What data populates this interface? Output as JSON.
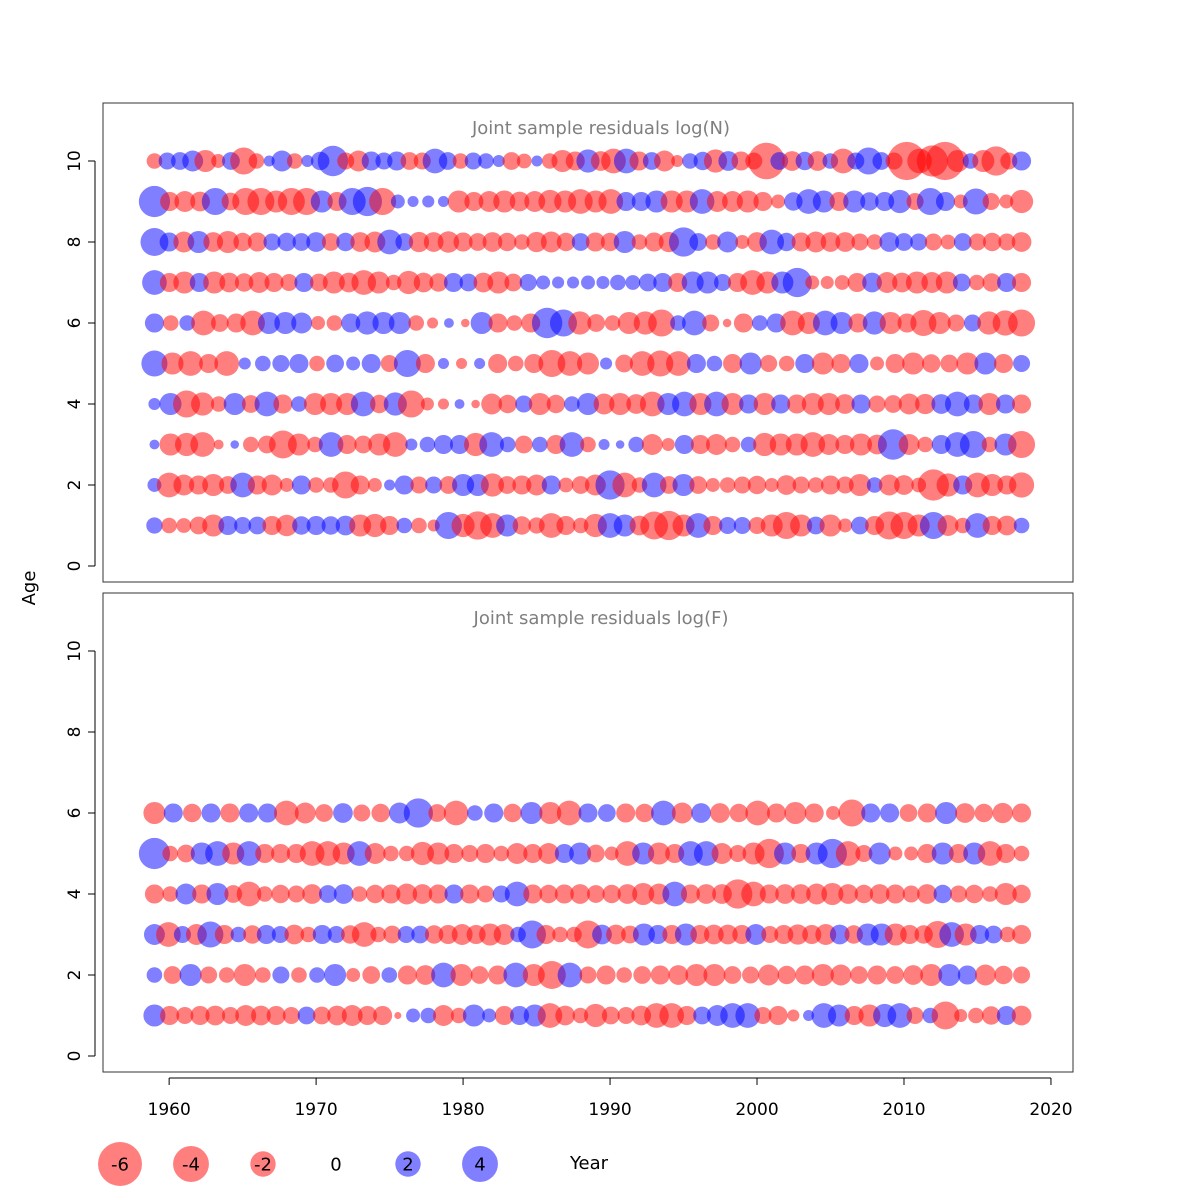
{
  "chart_data": {
    "type": "bubble",
    "xlabel": "Year",
    "ylabel": "Age",
    "xlim": [
      1955.5,
      2021.5
    ],
    "x_ticks": [
      1960,
      1970,
      1980,
      1990,
      2000,
      2010,
      2020
    ],
    "y_ticks": [
      0,
      2,
      4,
      6,
      8,
      10
    ],
    "ylim": [
      -0.3,
      11.5
    ],
    "colors": {
      "negative": "#ff0000",
      "positive": "#0000ff",
      "opacity": 0.5,
      "title": "#7f7f7f"
    },
    "legend": {
      "position": "bottom",
      "items": [
        {
          "label": "-6",
          "value": -6
        },
        {
          "label": "-4",
          "value": -4
        },
        {
          "label": "-2",
          "value": -2
        },
        {
          "label": "0",
          "value": 0
        },
        {
          "label": "2",
          "value": 2
        },
        {
          "label": "4",
          "value": 4
        }
      ]
    },
    "panels": [
      {
        "title": "Joint sample residuals log(N)",
        "years": [
          1959,
          2018
        ],
        "ages": [
          1,
          2,
          3,
          4,
          5,
          6,
          7,
          8,
          9,
          10
        ],
        "residuals": {
          "1": [
            1.1,
            -1.0,
            -0.9,
            -1.3,
            -2.0,
            1.5,
            1.2,
            1.3,
            -1.5,
            -1.9,
            1.4,
            1.5,
            1.4,
            1.6,
            -2.0,
            -2.2,
            -1.5,
            1.0,
            -1.0,
            -0.6,
            3.0,
            -2.2,
            -3.3,
            -2.5,
            2.0,
            -1.4,
            -1.1,
            -2.5,
            -1.5,
            -1.0,
            -2.2,
            2.5,
            2.0,
            -1.6,
            -3.2,
            -3.5,
            -2.0,
            2.5,
            -1.5,
            1.2,
            1.2,
            -1.2,
            -2.0,
            -3.0,
            -2.0,
            1.3,
            -2.0,
            -0.8,
            1.3,
            -1.5,
            -3.2,
            -3.0,
            -2.0,
            3.0,
            -1.8,
            -1.0,
            2.5,
            -1.5,
            -1.6,
            1.0
          ],
          "2": [
            0.8,
            -2.5,
            -1.8,
            -1.5,
            -2.0,
            -1.3,
            2.5,
            -1.5,
            -1.8,
            -0.8,
            1.5,
            -1.0,
            -1.0,
            -3.0,
            -1.5,
            -0.8,
            0.5,
            1.5,
            -1.2,
            1.2,
            -1.3,
            2.0,
            2.0,
            -2.2,
            -1.3,
            -1.5,
            -1.8,
            1.5,
            -0.9,
            -1.3,
            -1.8,
            3.5,
            -2.5,
            -1.0,
            2.5,
            -1.3,
            2.0,
            -1.3,
            -0.8,
            -1.0,
            -1.2,
            -1.4,
            -0.8,
            -1.6,
            -1.2,
            -1.0,
            -1.5,
            -1.2,
            -2.0,
            1.0,
            -1.8,
            -1.6,
            -0.9,
            -4.0,
            -2.2,
            1.5,
            -2.5,
            -2.0,
            -1.5,
            -2.6
          ],
          "3": [
            0.4,
            -2.0,
            -2.2,
            -2.5,
            -0.4,
            0.3,
            -1.0,
            -1.3,
            -3.2,
            -2.0,
            -1.0,
            2.5,
            -1.5,
            -1.3,
            -2.0,
            -2.5,
            0.6,
            1.0,
            1.5,
            1.5,
            -2.2,
            2.5,
            1.0,
            -1.3,
            1.0,
            -1.5,
            2.5,
            -1.0,
            0.5,
            0.3,
            1.0,
            -1.8,
            -0.7,
            1.5,
            -1.5,
            -1.8,
            -1.0,
            1.0,
            -2.2,
            -2.0,
            -2.0,
            -2.5,
            -1.8,
            -1.5,
            -2.0,
            -1.6,
            3.8,
            -1.8,
            -1.0,
            1.5,
            2.5,
            3.0,
            -1.0,
            2.0,
            -3.0
          ],
          "4": [
            0.6,
            2.0,
            -3.0,
            -2.2,
            -1.0,
            2.0,
            -1.3,
            2.5,
            -1.5,
            1.0,
            -2.0,
            -2.0,
            -2.0,
            2.5,
            -1.4,
            2.2,
            -3.0,
            -0.7,
            -0.5,
            0.4,
            -0.3,
            -1.8,
            -1.4,
            1.2,
            -2.0,
            -1.4,
            1.0,
            2.0,
            -1.8,
            -2.0,
            -1.6,
            -2.5,
            2.0,
            2.5,
            -2.0,
            2.5,
            -2.0,
            1.5,
            -2.0,
            1.5,
            -1.5,
            -2.0,
            -2.0,
            -1.6,
            1.5,
            -1.2,
            -1.3,
            -1.8,
            -1.7,
            1.6,
            2.5,
            1.5,
            -2.0,
            1.5,
            -1.5
          ],
          "5": [
            2.8,
            -2.0,
            -2.5,
            -1.5,
            -2.5,
            0.6,
            1.0,
            1.2,
            1.5,
            -1.0,
            1.3,
            0.8,
            1.5,
            -1.2,
            3.0,
            -1.5,
            0.5,
            -0.5,
            0.5,
            -1.5,
            -1.0,
            -1.5,
            -3.0,
            -2.5,
            -2.0,
            0.6,
            -1.3,
            -2.5,
            -2.8,
            -2.5,
            1.5,
            1.0,
            -1.5,
            2.0,
            -1.2,
            -1.0,
            1.5,
            -2.0,
            -1.5,
            1.5,
            -0.8,
            -1.5,
            -2.0,
            -1.4,
            -1.3,
            -2.0,
            2.0,
            -1.5,
            1.2
          ],
          "6": [
            1.5,
            -1.0,
            1.0,
            -2.5,
            -1.3,
            -1.5,
            -2.5,
            2.0,
            2.0,
            1.8,
            -0.8,
            -1.0,
            1.5,
            2.2,
            2.0,
            2.0,
            -1.0,
            -0.5,
            0.4,
            -0.3,
            2.0,
            -1.5,
            -1.0,
            -1.5,
            3.8,
            3.0,
            -2.2,
            -1.3,
            -1.0,
            -2.0,
            -2.2,
            -3.0,
            1.0,
            2.5,
            -1.2,
            -0.3,
            -1.5,
            1.0,
            1.5,
            -2.5,
            -2.0,
            2.5,
            2.0,
            -1.5,
            2.2,
            -2.0,
            -1.5,
            -2.8,
            -2.0,
            -1.2,
            1.2,
            -2.2,
            -2.6,
            -3.0
          ],
          "7": [
            2.5,
            -1.5,
            -2.0,
            1.5,
            -2.0,
            -1.6,
            -1.4,
            -1.8,
            -1.5,
            -1.2,
            1.5,
            -1.3,
            -2.0,
            -1.6,
            -2.5,
            -2.0,
            -1.0,
            -2.2,
            -1.6,
            -1.4,
            1.5,
            1.3,
            -1.6,
            -2.0,
            -1.3,
            1.2,
            0.8,
            0.6,
            0.6,
            0.8,
            0.7,
            1.0,
            0.9,
            1.3,
            1.5,
            -1.5,
            2.0,
            2.0,
            1.2,
            -1.5,
            -2.5,
            -2.0,
            2.0,
            3.5,
            -0.8,
            -0.7,
            -0.9,
            -1.5,
            1.6,
            -1.8,
            -1.6,
            -2.0,
            -1.8,
            -2.0,
            1.3,
            -1.0,
            -1.4,
            1.5,
            -1.5
          ],
          "8": [
            3.2,
            1.5,
            -1.8,
            2.0,
            -1.6,
            -2.0,
            -1.4,
            -1.5,
            1.2,
            1.4,
            1.3,
            1.6,
            -1.3,
            1.4,
            -1.6,
            -1.8,
            2.5,
            1.3,
            -1.7,
            -1.6,
            -1.9,
            -1.5,
            -1.3,
            -1.6,
            -1.4,
            -1.0,
            -1.7,
            -1.8,
            -1.4,
            1.3,
            -1.5,
            -1.4,
            2.0,
            -1.0,
            -1.5,
            -1.7,
            3.5,
            1.3,
            -1.0,
            1.8,
            -0.8,
            -1.6,
            2.5,
            1.4,
            -1.5,
            -1.8,
            -1.6,
            -1.6,
            -1.2,
            -1.0,
            1.6,
            1.3,
            1.2,
            -1.2,
            -0.9,
            1.3,
            -1.2,
            -1.4,
            -1.2,
            -1.6
          ],
          "9": [
            4.0,
            -1.5,
            -1.8,
            -1.6,
            3.0,
            -1.3,
            -3.0,
            -3.0,
            -2.0,
            -3.0,
            -3.0,
            2.0,
            -1.5,
            3.0,
            3.5,
            -3.0,
            0.8,
            0.5,
            0.6,
            0.5,
            -2.0,
            -1.5,
            -1.8,
            -2.0,
            -1.6,
            -1.8,
            -2.2,
            -2.0,
            -2.5,
            -2.0,
            -2.5,
            1.5,
            1.5,
            2.0,
            -2.0,
            -2.0,
            2.5,
            -1.8,
            -1.8,
            -2.0,
            -1.5,
            -0.8,
            1.4,
            2.5,
            2.0,
            -1.5,
            2.0,
            1.4,
            1.5,
            2.2,
            -1.2,
            3.0,
            1.5,
            -0.8,
            2.8,
            -1.2,
            -0.8,
            -2.2
          ],
          "10": [
            -1.0,
            1.2,
            1.3,
            1.8,
            -2.0,
            -0.8,
            1.3,
            -3.0,
            -1.0,
            0.5,
            1.8,
            -1.0,
            0.6,
            1.4,
            3.8,
            -1.2,
            -1.8,
            1.5,
            1.2,
            1.5,
            -1.3,
            -1.2,
            2.5,
            1.3,
            -1.0,
            1.2,
            1.0,
            0.6,
            -1.3,
            -0.9,
            0.5,
            -1.0,
            -2.0,
            -1.5,
            2.2,
            -1.6,
            -2.5,
            2.5,
            -1.5,
            1.3,
            -1.8,
            -0.6,
            1.0,
            1.4,
            -2.2,
            1.6,
            -1.5,
            -1.2,
            -5.5,
            1.3,
            -1.6,
            1.4,
            -1.6,
            1.0,
            -2.5,
            1.2,
            3.0,
            1.3,
            -1.2,
            -6.0,
            -2.5,
            -4.0,
            -6.0,
            -2.0,
            1.0,
            -2.0,
            -3.5,
            -1.2,
            1.5
          ]
        }
      },
      {
        "title": "Joint sample residuals log(F)",
        "years": [
          1959,
          2018
        ],
        "ages": [
          1,
          2,
          3,
          4,
          5,
          6
        ],
        "residuals": {
          "1": [
            2.0,
            -1.5,
            -1.2,
            -1.5,
            -1.6,
            -1.2,
            -1.8,
            -1.6,
            -1.5,
            -1.2,
            1.3,
            -1.3,
            -1.6,
            -1.8,
            -1.5,
            -1.5,
            -0.2,
            0.8,
            1.0,
            -1.8,
            -1.0,
            2.0,
            0.8,
            -1.5,
            1.5,
            2.0,
            -2.5,
            -1.6,
            -1.0,
            -2.2,
            -1.3,
            -1.2,
            -1.6,
            -2.5,
            -2.5,
            -1.5,
            1.3,
            1.8,
            2.5,
            2.5,
            -1.2,
            -1.5,
            -0.6,
            0.5,
            2.5,
            2.0,
            -1.5,
            -2.0,
            2.2,
            2.5,
            -1.2,
            1.0,
            -3.2,
            -0.7,
            -1.0,
            -1.4,
            1.5,
            -1.6
          ],
          "2": [
            1.0,
            -1.3,
            2.0,
            -1.2,
            -1.0,
            -2.0,
            -1.0,
            1.2,
            -1.0,
            1.0,
            2.0,
            -0.8,
            -1.3,
            1.0,
            -1.5,
            -1.6,
            2.5,
            -2.0,
            -1.3,
            -1.5,
            2.5,
            -2.0,
            -3.2,
            2.5,
            -1.2,
            -1.5,
            -1.0,
            -1.3,
            -1.5,
            -1.6,
            -2.0,
            -2.0,
            -1.3,
            -1.2,
            -1.8,
            -1.4,
            -1.5,
            -2.0,
            -1.8,
            -1.3,
            -1.5,
            -1.3,
            -1.6,
            -2.0,
            2.0,
            1.5,
            -1.8,
            -1.4,
            -1.2
          ],
          "3": [
            1.8,
            -2.5,
            1.2,
            -1.8,
            2.8,
            -1.5,
            1.0,
            -1.4,
            1.5,
            1.2,
            -1.6,
            -1.0,
            1.5,
            1.2,
            -1.4,
            -2.5,
            -1.0,
            -1.3,
            1.2,
            1.3,
            -1.4,
            -1.5,
            -1.8,
            -1.5,
            -2.0,
            -1.8,
            1.0,
            3.2,
            -1.5,
            -1.0,
            -1.0,
            -3.2,
            1.6,
            -1.6,
            -1.3,
            2.0,
            1.5,
            -1.5,
            2.0,
            -1.5,
            -1.6,
            -1.6,
            -1.5,
            1.8,
            -1.2,
            -1.5,
            -1.7,
            -1.5,
            -1.8,
            1.6,
            -1.4,
            2.0,
            2.0,
            -2.0,
            -1.5,
            -1.4,
            -3.0,
            2.5,
            -2.0,
            1.5,
            1.3,
            -1.0,
            -1.5
          ],
          "4": [
            -1.5,
            -1.0,
            1.8,
            -1.5,
            2.0,
            -1.3,
            -2.5,
            -1.0,
            -1.4,
            -1.2,
            -1.6,
            1.3,
            1.6,
            -1.0,
            -1.4,
            -1.5,
            -1.8,
            -1.6,
            -1.5,
            1.5,
            -1.5,
            -1.2,
            1.2,
            2.5,
            -1.5,
            -1.4,
            -1.5,
            -1.6,
            -1.3,
            -1.4,
            -1.6,
            -2.0,
            -1.8,
            2.5,
            -1.5,
            -1.6,
            -1.6,
            -3.5,
            -2.5,
            -1.5,
            -1.6,
            -1.6,
            -1.8,
            -2.0,
            -1.6,
            -1.4,
            -1.6,
            -1.5,
            -1.2,
            -1.6,
            1.4,
            -1.2,
            -1.4,
            -1.0,
            -2.0,
            -1.4
          ],
          "5": [
            4.0,
            -1.0,
            -1.3,
            2.0,
            2.5,
            -2.0,
            2.5,
            -1.5,
            -1.5,
            -1.5,
            -2.5,
            -2.5,
            -2.0,
            2.5,
            -1.8,
            -1.0,
            -1.0,
            -2.2,
            -2.0,
            -1.5,
            -1.2,
            -1.5,
            -1.0,
            -1.8,
            -1.5,
            -1.8,
            1.5,
            2.0,
            -1.3,
            -0.8,
            -2.5,
            2.0,
            -2.0,
            -1.5,
            2.5,
            2.5,
            -1.8,
            -1.2,
            -2.0,
            -3.5,
            2.0,
            -1.5,
            2.0,
            3.5,
            -2.5,
            -1.2,
            2.0,
            -0.8,
            -0.8,
            -1.5,
            2.0,
            -1.5,
            2.0,
            -2.5,
            -1.5,
            -1.0
          ],
          "6": [
            -2.0,
            1.5,
            -1.4,
            1.5,
            -1.5,
            1.5,
            1.5,
            -2.5,
            -1.8,
            -1.3,
            1.6,
            -1.2,
            -1.4,
            1.8,
            3.5,
            -1.3,
            -2.5,
            1.0,
            1.5,
            -1.4,
            2.0,
            -2.0,
            -2.5,
            1.5,
            1.3,
            -1.5,
            -1.4,
            2.5,
            -1.8,
            1.6,
            -1.6,
            -1.4,
            -2.5,
            -1.5,
            -2.0,
            -1.5,
            -0.8,
            -3.0,
            1.5,
            1.5,
            -1.3,
            -1.5,
            2.0,
            -1.6,
            -1.4,
            -1.7,
            -1.5
          ]
        }
      }
    ]
  }
}
